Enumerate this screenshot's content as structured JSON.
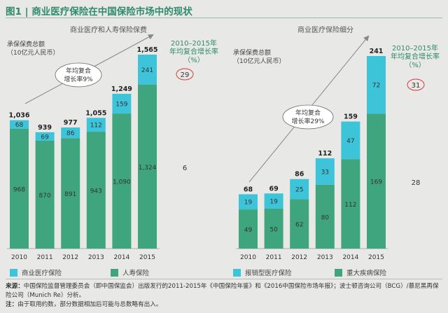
{
  "figure": {
    "title": "图1 | 商业医疗保险在中国保险市场中的现状"
  },
  "left": {
    "title": "商业医疗和人寿保险保费",
    "unit": [
      "承保保费总额",
      "（10亿元人民币）"
    ],
    "cagr_head": [
      "2010–2015年",
      "年均复合增长率",
      "（%）"
    ],
    "cagr_label": [
      "年均复合",
      "增长率9%"
    ],
    "legend": [
      "商业医疗保险",
      "人寿保险"
    ],
    "cagr_values": [
      "29",
      "6"
    ]
  },
  "right": {
    "title": "商业医疗保险细分",
    "unit": [
      "承保保费总额",
      "（10亿元人民币）"
    ],
    "cagr_head": [
      "2010–2015年",
      "年均复合增长率",
      "（%）"
    ],
    "cagr_label": [
      "年均复合",
      "增长率29%"
    ],
    "legend": [
      "报销型医疗保险",
      "重大疾病保险"
    ],
    "cagr_values": [
      "31",
      "28"
    ]
  },
  "notes": {
    "source_label": "来源：",
    "source_text": "中国保险监督管理委员会（即中国保监会）出版发行的2011-2015年《中国保险年鉴》和《2016中国保险市场年报》；波士顿咨询公司（BCG）/慕尼黑再保险公司（Munich Re）分析。",
    "note_label": "注：",
    "note_text": "由于取用约数，部分数据相加后可能与总数略有出入。"
  },
  "colors": {
    "top_series": "#3ec4d8",
    "bottom_series": "#3fa57e",
    "accent": "#2f8a6e",
    "circle": "#d9373a"
  },
  "chart_data": [
    {
      "type": "bar",
      "stacked": true,
      "title": "商业医疗和人寿保险保费",
      "categories": [
        "2010",
        "2011",
        "2012",
        "2013",
        "2014",
        "2015"
      ],
      "series": [
        {
          "name": "人寿保险",
          "values": [
            968,
            870,
            891,
            943,
            1090,
            1324
          ]
        },
        {
          "name": "商业医疗保险",
          "values": [
            68,
            69,
            86,
            112,
            159,
            241
          ]
        }
      ],
      "totals": [
        "1,036",
        "939",
        "977",
        "1,055",
        "1,249",
        "1,565"
      ],
      "bottom_labels": [
        "968",
        "870",
        "891",
        "943",
        "1,090",
        "1,324"
      ],
      "top_labels": [
        "68",
        "69",
        "86",
        "112",
        "159",
        "241"
      ],
      "ylim": [
        0,
        1565
      ]
    },
    {
      "type": "bar",
      "stacked": true,
      "title": "商业医疗保险细分",
      "categories": [
        "2010",
        "2011",
        "2012",
        "2013",
        "2014",
        "2015"
      ],
      "series": [
        {
          "name": "重大疾病保险",
          "values": [
            49,
            50,
            62,
            80,
            112,
            169
          ]
        },
        {
          "name": "报销型医疗保险",
          "values": [
            19,
            19,
            25,
            33,
            47,
            72
          ]
        }
      ],
      "totals": [
        "68",
        "69",
        "86",
        "112",
        "159",
        "241"
      ],
      "bottom_labels": [
        "49",
        "50",
        "62",
        "80",
        "112",
        "169"
      ],
      "top_labels": [
        "19",
        "19",
        "25",
        "33",
        "47",
        "72"
      ],
      "ylim": [
        0,
        241
      ]
    }
  ]
}
